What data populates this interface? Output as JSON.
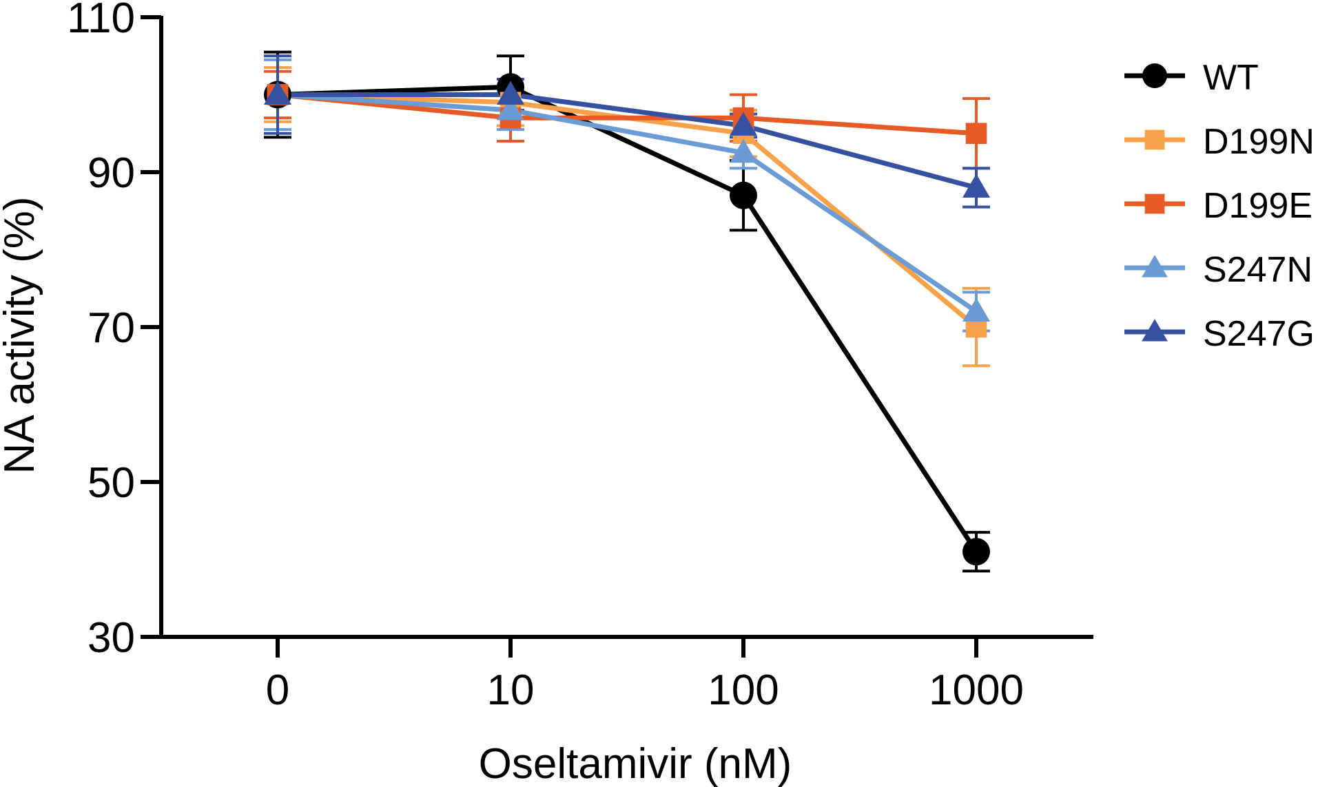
{
  "chart_data": {
    "type": "line",
    "title": "",
    "xlabel": "Oseltamivir (nM)",
    "ylabel": "NA activity (%)",
    "categories": [
      "0",
      "10",
      "100",
      "1000"
    ],
    "ylim": [
      30,
      110
    ],
    "yticks": [
      30,
      50,
      70,
      90,
      110
    ],
    "grid": false,
    "legend_position": "right",
    "error_bars": true,
    "series": [
      {
        "name": "WT",
        "color": "#000000",
        "marker": "circle",
        "values": [
          100,
          101,
          87,
          41
        ],
        "errors": [
          5.5,
          4,
          4.5,
          2.5
        ]
      },
      {
        "name": "D199N",
        "color": "#F7A24B",
        "marker": "square",
        "values": [
          100,
          99,
          95,
          70
        ],
        "errors": [
          3.5,
          3,
          3,
          5
        ]
      },
      {
        "name": "D199E",
        "color": "#E65A25",
        "marker": "square",
        "values": [
          100,
          97,
          97,
          95
        ],
        "errors": [
          3,
          3,
          3,
          4.5
        ]
      },
      {
        "name": "S247N",
        "color": "#6A9BD4",
        "marker": "triangle",
        "values": [
          100,
          98,
          92.5,
          72
        ],
        "errors": [
          4.5,
          2.5,
          2,
          2.5
        ]
      },
      {
        "name": "S247G",
        "color": "#3650A2",
        "marker": "triangle",
        "values": [
          100,
          100,
          96,
          88
        ],
        "errors": [
          5,
          2,
          1.5,
          2.5
        ]
      }
    ]
  }
}
